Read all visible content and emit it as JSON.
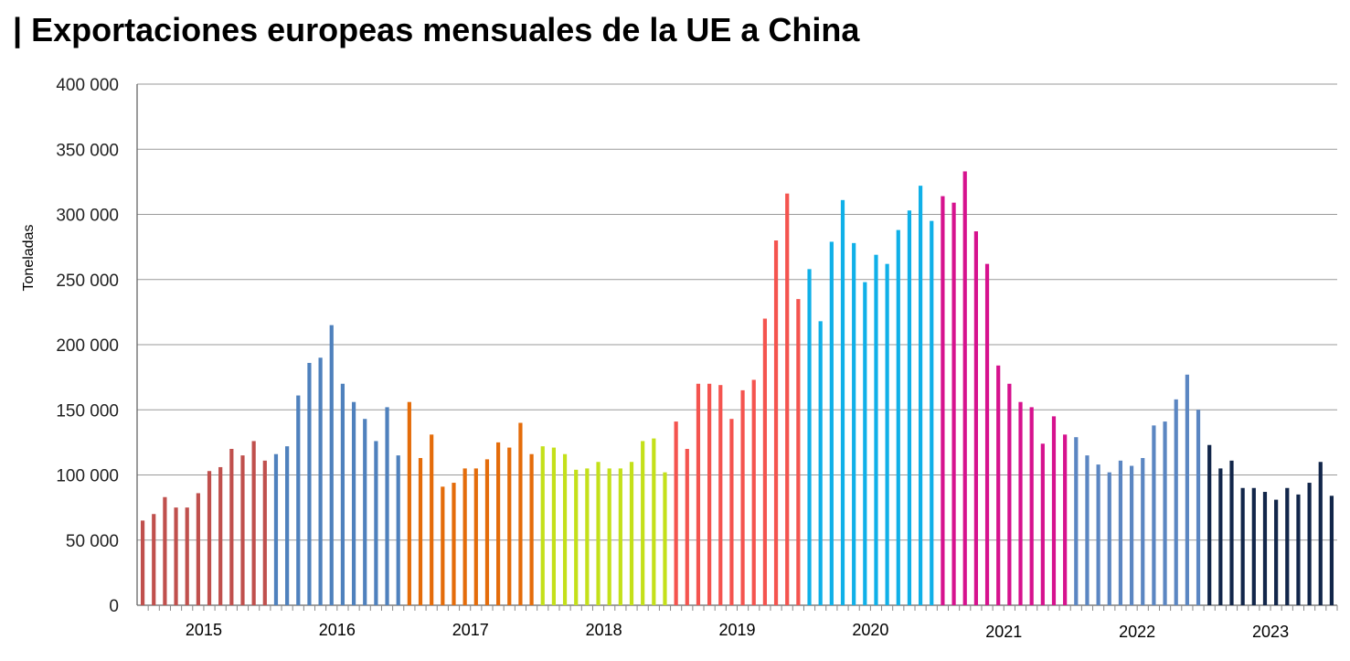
{
  "title": "| Exportaciones europeas mensuales de la UE a China",
  "chart_data": {
    "type": "bar",
    "title": "| Exportaciones europeas mensuales de la UE a China",
    "ylabel": "Toneladas",
    "xlabel": "",
    "ylim": [
      0,
      400000
    ],
    "yticks": [
      0,
      50000,
      100000,
      150000,
      200000,
      250000,
      300000,
      350000,
      400000
    ],
    "ytick_labels": [
      "0",
      "50 000",
      "100 000",
      "150 000",
      "200 000",
      "250 000",
      "300 000",
      "350 000",
      "400 000"
    ],
    "grid": true,
    "legend": "none",
    "series": [
      {
        "year": "2015",
        "color": "#C0504D",
        "values": [
          65000,
          70000,
          83000,
          75000,
          75000,
          86000,
          103000,
          106000,
          120000,
          115000,
          126000,
          111000
        ]
      },
      {
        "year": "2016",
        "color": "#4F81BD",
        "values": [
          116000,
          122000,
          161000,
          186000,
          190000,
          215000,
          170000,
          156000,
          143000,
          126000,
          152000,
          115000
        ]
      },
      {
        "year": "2017",
        "color": "#E46C0A",
        "values": [
          156000,
          113000,
          131000,
          91000,
          94000,
          105000,
          105000,
          112000,
          125000,
          121000,
          140000,
          116000
        ]
      },
      {
        "year": "2018",
        "color": "#C4E01A",
        "values": [
          122000,
          121000,
          116000,
          104000,
          105000,
          110000,
          105000,
          105000,
          110000,
          126000,
          128000,
          102000
        ]
      },
      {
        "year": "2019",
        "color": "#F4544F",
        "values": [
          141000,
          120000,
          170000,
          170000,
          169000,
          143000,
          165000,
          173000,
          220000,
          280000,
          316000,
          235000
        ]
      },
      {
        "year": "2020",
        "color": "#10B0E8",
        "values": [
          258000,
          218000,
          279000,
          311000,
          278000,
          248000,
          269000,
          262000,
          288000,
          303000,
          322000,
          295000
        ]
      },
      {
        "year": "2021",
        "color": "#D6128E",
        "values": [
          314000,
          309000,
          333000,
          287000,
          262000,
          184000,
          170000,
          156000,
          152000,
          124000,
          145000,
          131000
        ]
      },
      {
        "year": "2022",
        "color": "#5B86C2",
        "values": [
          129000,
          115000,
          108000,
          102000,
          111000,
          107000,
          113000,
          138000,
          141000,
          158000,
          177000,
          150000
        ]
      },
      {
        "year": "2023",
        "color": "#12264A",
        "values": [
          123000,
          105000,
          111000,
          90000,
          90000,
          87000,
          81000,
          90000,
          85000,
          94000,
          110000,
          84000
        ]
      }
    ]
  }
}
